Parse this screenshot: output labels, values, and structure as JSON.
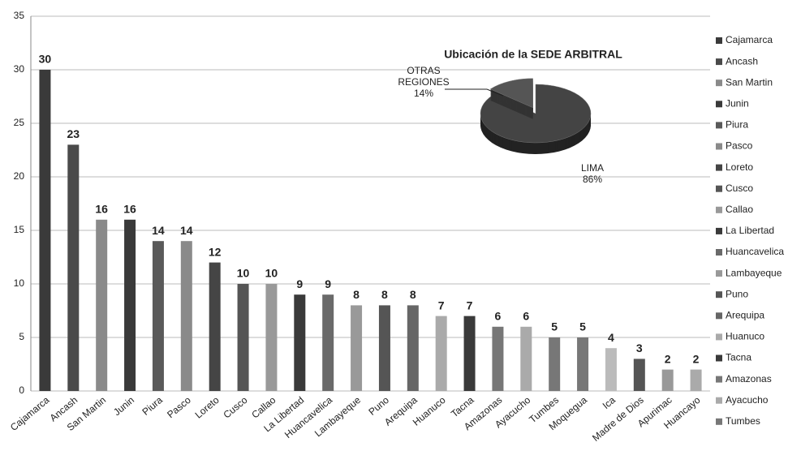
{
  "chart_data": {
    "type": "bar",
    "categories": [
      "Cajamarca",
      "Ancash",
      "San Martin",
      "Junin",
      "Piura",
      "Pasco",
      "Loreto",
      "Cusco",
      "Callao",
      "La Libertad",
      "Huancavelica",
      "Lambayeque",
      "Puno",
      "Arequipa",
      "Huanuco",
      "Tacna",
      "Amazonas",
      "Ayacucho",
      "Tumbes",
      "Moquegua",
      "Ica",
      "Madre de Dios",
      "Apurimac",
      "Huancayo"
    ],
    "values": [
      30,
      23,
      16,
      16,
      14,
      14,
      12,
      10,
      10,
      9,
      9,
      8,
      8,
      8,
      7,
      7,
      6,
      6,
      5,
      5,
      4,
      3,
      2,
      2
    ],
    "colors": [
      "#3a3a3a",
      "#4a4a4a",
      "#8a8a8a",
      "#3a3a3a",
      "#5a5a5a",
      "#8a8a8a",
      "#454545",
      "#555555",
      "#999999",
      "#3a3a3a",
      "#6a6a6a",
      "#999999",
      "#555555",
      "#666666",
      "#aaaaaa",
      "#3a3a3a",
      "#777777",
      "#aaaaaa",
      "#777777",
      "#777777",
      "#bbbbbb",
      "#555555",
      "#999999",
      "#aaaaaa"
    ],
    "legend": [
      "Cajamarca",
      "Ancash",
      "San Martin",
      "Junin",
      "Piura",
      "Pasco",
      "Loreto",
      "Cusco",
      "Callao",
      "La Libertad",
      "Huancavelica",
      "Lambayeque",
      "Puno",
      "Arequipa",
      "Huanuco",
      "Tacna",
      "Amazonas",
      "Ayacucho",
      "Tumbes"
    ],
    "ylim": [
      0,
      35
    ],
    "yticks": [
      0,
      5,
      10,
      15,
      20,
      25,
      30,
      35
    ],
    "grid": true,
    "inset": {
      "type": "pie",
      "title": "Ubicación de la SEDE ARBITRAL",
      "categories": [
        "LIMA",
        "OTRAS REGIONES"
      ],
      "values": [
        86,
        14
      ],
      "value_labels": [
        "86%",
        "14%"
      ],
      "colors": [
        "#444444",
        "#555555"
      ]
    }
  }
}
